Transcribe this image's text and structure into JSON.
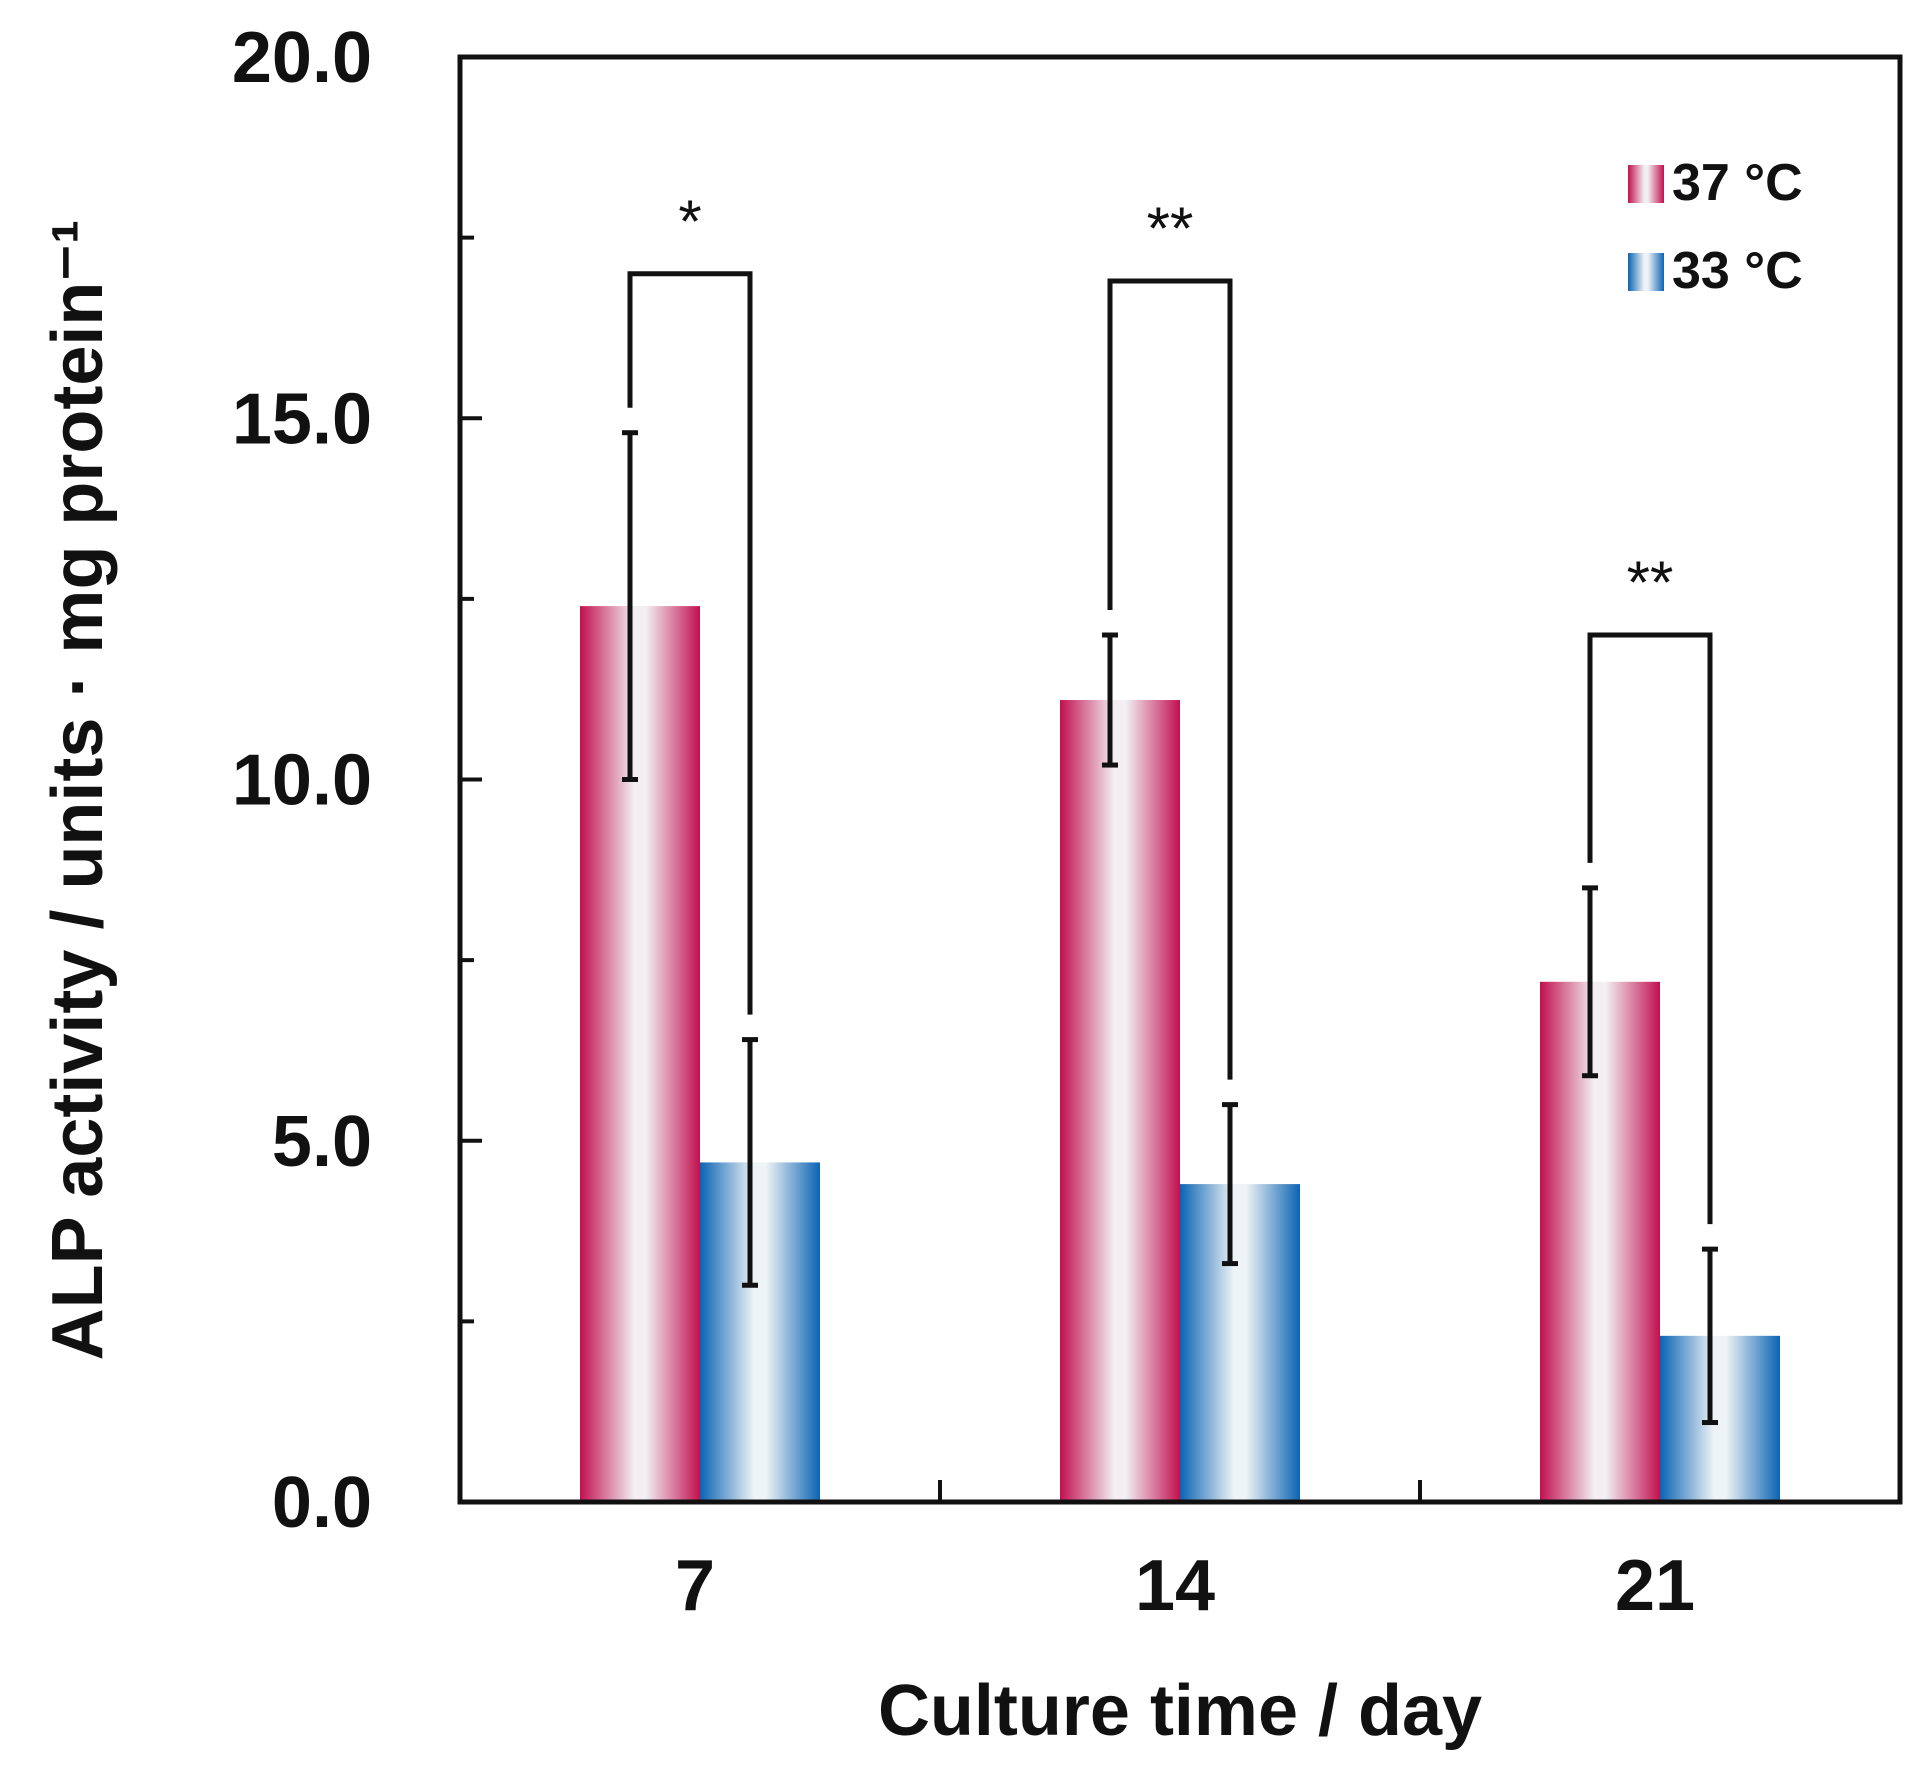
{
  "chart_data": {
    "type": "bar",
    "categories": [
      "7",
      "14",
      "21"
    ],
    "series": [
      {
        "name": "37 °C",
        "values": [
          12.4,
          11.1,
          7.2
        ],
        "errors": [
          2.4,
          0.9,
          1.3
        ],
        "color": "#c2104f"
      },
      {
        "name": "33 °C",
        "values": [
          4.7,
          4.4,
          2.3
        ],
        "errors": [
          1.7,
          1.1,
          1.2
        ],
        "color": "#0b64b3"
      }
    ],
    "ylim": [
      0,
      20
    ],
    "yticks": [
      "0.0",
      "5.0",
      "10.0",
      "15.0",
      "20.0"
    ],
    "xlabel": "Culture time / day",
    "ylabel": "ALP activity / units · mg protein⁻¹",
    "legend": {
      "position": "top-right"
    },
    "significance": [
      {
        "label": "*",
        "category": "7",
        "bracket_top": 17.0
      },
      {
        "label": "**",
        "category": "14",
        "bracket_top": 16.9
      },
      {
        "label": "**",
        "category": "21",
        "bracket_top": 12.0
      }
    ]
  }
}
